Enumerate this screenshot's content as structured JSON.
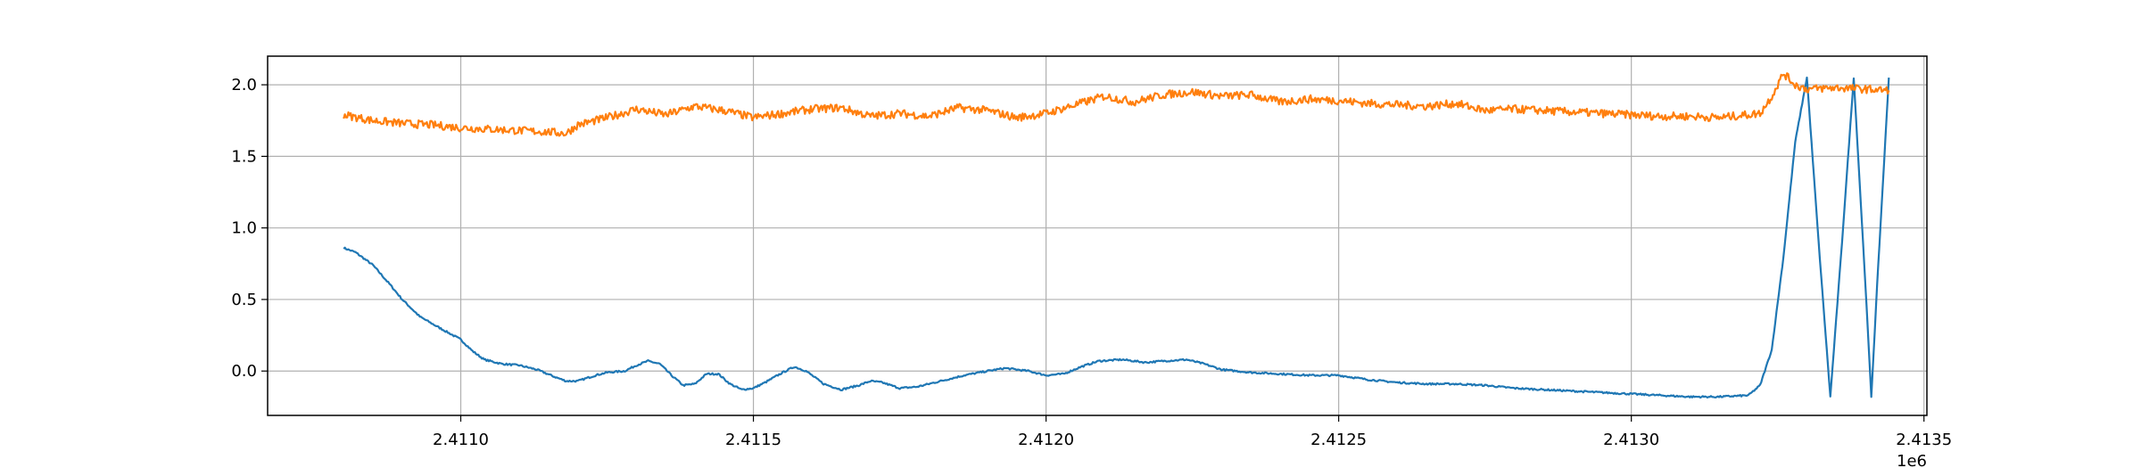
{
  "chart_data": {
    "type": "line",
    "title": "",
    "xlabel": "",
    "ylabel": "",
    "x_offset_label": "1e6",
    "xlim": [
      2.41067,
      2.413505
    ],
    "ylim": [
      -0.31,
      2.2
    ],
    "grid": true,
    "x_ticks": [
      2.411,
      2.4115,
      2.412,
      2.4125,
      2.413,
      2.4135
    ],
    "x_tick_labels": [
      "2.4110",
      "2.4115",
      "2.4120",
      "2.4125",
      "2.4130",
      "2.4135"
    ],
    "y_ticks": [
      0.0,
      0.5,
      1.0,
      1.5,
      2.0
    ],
    "y_tick_labels": [
      "0.0",
      "0.5",
      "1.0",
      "1.5",
      "2.0"
    ],
    "series": [
      {
        "color": "#1f77b4",
        "noise": 0.006,
        "points": [
          [
            2.4108,
            0.86
          ],
          [
            2.41082,
            0.83
          ],
          [
            2.41085,
            0.74
          ],
          [
            2.41088,
            0.6
          ],
          [
            2.4109,
            0.5
          ],
          [
            2.41093,
            0.38
          ],
          [
            2.41096,
            0.31
          ],
          [
            2.411,
            0.22
          ],
          [
            2.41102,
            0.14
          ],
          [
            2.41104,
            0.08
          ],
          [
            2.41107,
            0.05
          ],
          [
            2.4111,
            0.04
          ],
          [
            2.41113,
            0.01
          ],
          [
            2.41116,
            -0.04
          ],
          [
            2.41118,
            -0.07
          ],
          [
            2.4112,
            -0.07
          ],
          [
            2.41123,
            -0.03
          ],
          [
            2.41125,
            -0.01
          ],
          [
            2.41128,
            0.0
          ],
          [
            2.4113,
            0.04
          ],
          [
            2.41132,
            0.07
          ],
          [
            2.41134,
            0.05
          ],
          [
            2.41136,
            -0.03
          ],
          [
            2.41138,
            -0.1
          ],
          [
            2.4114,
            -0.09
          ],
          [
            2.41142,
            -0.02
          ],
          [
            2.41144,
            -0.02
          ],
          [
            2.41146,
            -0.09
          ],
          [
            2.41148,
            -0.13
          ],
          [
            2.4115,
            -0.12
          ],
          [
            2.41152,
            -0.08
          ],
          [
            2.41155,
            -0.01
          ],
          [
            2.41157,
            0.03
          ],
          [
            2.41159,
            0.0
          ],
          [
            2.41162,
            -0.09
          ],
          [
            2.41165,
            -0.13
          ],
          [
            2.41168,
            -0.1
          ],
          [
            2.4117,
            -0.07
          ],
          [
            2.41172,
            -0.08
          ],
          [
            2.41175,
            -0.12
          ],
          [
            2.41178,
            -0.11
          ],
          [
            2.41182,
            -0.07
          ],
          [
            2.41186,
            -0.03
          ],
          [
            2.4119,
            0.0
          ],
          [
            2.41193,
            0.02
          ],
          [
            2.41197,
            0.0
          ],
          [
            2.412,
            -0.03
          ],
          [
            2.41203,
            -0.02
          ],
          [
            2.41206,
            0.03
          ],
          [
            2.41209,
            0.07
          ],
          [
            2.41213,
            0.08
          ],
          [
            2.41217,
            0.06
          ],
          [
            2.4122,
            0.07
          ],
          [
            2.41224,
            0.08
          ],
          [
            2.41227,
            0.05
          ],
          [
            2.4123,
            0.01
          ],
          [
            2.41235,
            -0.01
          ],
          [
            2.4124,
            -0.02
          ],
          [
            2.41245,
            -0.03
          ],
          [
            2.4125,
            -0.03
          ],
          [
            2.41255,
            -0.06
          ],
          [
            2.4126,
            -0.08
          ],
          [
            2.41265,
            -0.09
          ],
          [
            2.4127,
            -0.09
          ],
          [
            2.41275,
            -0.1
          ],
          [
            2.4128,
            -0.12
          ],
          [
            2.41285,
            -0.13
          ],
          [
            2.4129,
            -0.14
          ],
          [
            2.41295,
            -0.15
          ],
          [
            2.413,
            -0.16
          ],
          [
            2.41305,
            -0.17
          ],
          [
            2.4131,
            -0.18
          ],
          [
            2.41315,
            -0.18
          ],
          [
            2.4132,
            -0.17
          ],
          [
            2.41322,
            -0.1
          ],
          [
            2.41324,
            0.15
          ],
          [
            2.41326,
            0.8
          ],
          [
            2.41328,
            1.6
          ],
          [
            2.4133,
            2.05
          ],
          [
            2.41332,
            0.9
          ],
          [
            2.41334,
            -0.18
          ],
          [
            2.41336,
            0.9
          ],
          [
            2.41338,
            2.05
          ],
          [
            2.4134,
            0.6
          ],
          [
            2.41341,
            -0.18
          ],
          [
            2.41342,
            0.6
          ],
          [
            2.41344,
            2.05
          ]
        ]
      },
      {
        "color": "#ff7f0e",
        "noise": 0.028,
        "points": [
          [
            2.4108,
            1.79
          ],
          [
            2.41085,
            1.75
          ],
          [
            2.4109,
            1.73
          ],
          [
            2.41095,
            1.72
          ],
          [
            2.411,
            1.7
          ],
          [
            2.41105,
            1.69
          ],
          [
            2.4111,
            1.68
          ],
          [
            2.41115,
            1.67
          ],
          [
            2.41118,
            1.66
          ],
          [
            2.4112,
            1.72
          ],
          [
            2.41125,
            1.77
          ],
          [
            2.4113,
            1.83
          ],
          [
            2.41135,
            1.79
          ],
          [
            2.4114,
            1.85
          ],
          [
            2.41145,
            1.82
          ],
          [
            2.4115,
            1.77
          ],
          [
            2.41155,
            1.8
          ],
          [
            2.4116,
            1.83
          ],
          [
            2.41165,
            1.84
          ],
          [
            2.4117,
            1.78
          ],
          [
            2.41175,
            1.8
          ],
          [
            2.4118,
            1.78
          ],
          [
            2.41185,
            1.84
          ],
          [
            2.4119,
            1.82
          ],
          [
            2.41195,
            1.77
          ],
          [
            2.412,
            1.8
          ],
          [
            2.41205,
            1.86
          ],
          [
            2.4121,
            1.92
          ],
          [
            2.41215,
            1.88
          ],
          [
            2.4122,
            1.93
          ],
          [
            2.41225,
            1.95
          ],
          [
            2.4123,
            1.92
          ],
          [
            2.41235,
            1.93
          ],
          [
            2.4124,
            1.88
          ],
          [
            2.41245,
            1.9
          ],
          [
            2.4125,
            1.89
          ],
          [
            2.41255,
            1.87
          ],
          [
            2.4126,
            1.86
          ],
          [
            2.41265,
            1.85
          ],
          [
            2.4127,
            1.87
          ],
          [
            2.41275,
            1.82
          ],
          [
            2.4128,
            1.83
          ],
          [
            2.41285,
            1.82
          ],
          [
            2.4129,
            1.81
          ],
          [
            2.41295,
            1.8
          ],
          [
            2.413,
            1.79
          ],
          [
            2.41305,
            1.78
          ],
          [
            2.4131,
            1.78
          ],
          [
            2.41315,
            1.77
          ],
          [
            2.41322,
            1.8
          ],
          [
            2.41324,
            1.92
          ],
          [
            2.41326,
            2.08
          ],
          [
            2.41328,
            2.0
          ],
          [
            2.4133,
            1.97
          ],
          [
            2.41335,
            1.98
          ],
          [
            2.4134,
            1.97
          ],
          [
            2.41344,
            1.96
          ]
        ]
      }
    ]
  }
}
